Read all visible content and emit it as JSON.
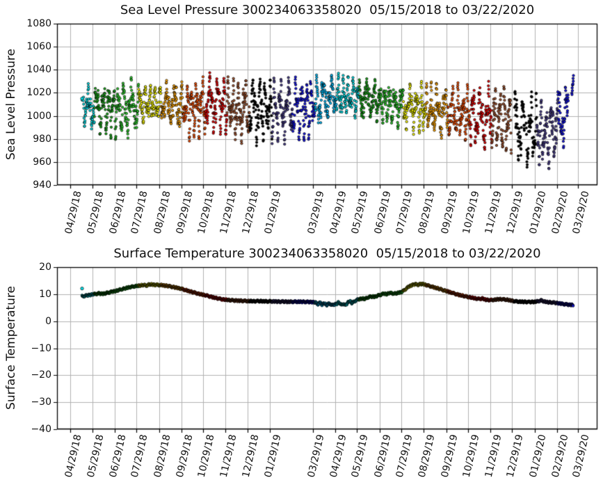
{
  "charts": [
    {
      "title": "Sea Level Pressure 300234063358020  05/15/2018 to 03/22/2020",
      "ylabel": "Sea Level Pressure"
    },
    {
      "title": "Surface Temperature 300234063358020  05/15/2018 to 03/22/2020",
      "ylabel": "Surface Temperature"
    }
  ],
  "chart_data": [
    {
      "type": "scatter",
      "title": "Sea Level Pressure 300234063358020  05/15/2018 to 03/22/2020",
      "xlabel": "",
      "ylabel": "Sea Level Pressure",
      "ylim": [
        940,
        1080
      ],
      "ytick_values": [
        940,
        960,
        980,
        1000,
        1020,
        1040,
        1060,
        1080
      ],
      "ytick_labels": [
        "940",
        "960",
        "980",
        "1000",
        "1020",
        "1040",
        "1060",
        "1080"
      ],
      "x_start_date": "2018-05-15",
      "x_end_date": "2020-03-22",
      "grid": true,
      "marker": "circle",
      "marker_edge_color": "#000000",
      "xticks": [
        {
          "label": "04/29/18",
          "day": -16
        },
        {
          "label": "05/29/18",
          "day": 14
        },
        {
          "label": "06/29/18",
          "day": 45
        },
        {
          "label": "07/29/18",
          "day": 75
        },
        {
          "label": "08/29/18",
          "day": 106
        },
        {
          "label": "09/29/18",
          "day": 137
        },
        {
          "label": "10/29/18",
          "day": 167
        },
        {
          "label": "11/29/18",
          "day": 198
        },
        {
          "label": "12/29/18",
          "day": 228
        },
        {
          "label": "01/29/19",
          "day": 259
        },
        {
          "label": "03/29/19",
          "day": 318
        },
        {
          "label": "04/29/19",
          "day": 349
        },
        {
          "label": "05/29/19",
          "day": 379
        },
        {
          "label": "06/29/19",
          "day": 410
        },
        {
          "label": "07/29/19",
          "day": 440
        },
        {
          "label": "08/29/19",
          "day": 471
        },
        {
          "label": "09/29/19",
          "day": 502
        },
        {
          "label": "10/29/19",
          "day": 532
        },
        {
          "label": "11/29/19",
          "day": 563
        },
        {
          "label": "12/29/19",
          "day": 593
        },
        {
          "label": "01/29/20",
          "day": 624
        },
        {
          "label": "02/29/20",
          "day": 655
        },
        {
          "label": "03/29/20",
          "day": 684
        }
      ],
      "first_point": {
        "day": 0,
        "value": 1015
      },
      "monthly_segments": [
        {
          "month": "2018-05",
          "color": "#00E5EE",
          "start_day": 0,
          "end_day": 17,
          "mean": 1006,
          "min": 988,
          "max": 1028
        },
        {
          "month": "2018-06",
          "color": "#1CAC1C",
          "start_day": 17,
          "end_day": 47,
          "mean": 1008,
          "min": 979,
          "max": 1033
        },
        {
          "month": "2018-07",
          "color": "#2FD42F",
          "start_day": 47,
          "end_day": 78,
          "mean": 1008,
          "min": 978,
          "max": 1035
        },
        {
          "month": "2018-08",
          "color": "#FFFF00",
          "start_day": 78,
          "end_day": 109,
          "mean": 1012,
          "min": 994,
          "max": 1029
        },
        {
          "month": "2018-09",
          "color": "#FFA500",
          "start_day": 109,
          "end_day": 139,
          "mean": 1010,
          "min": 988,
          "max": 1031
        },
        {
          "month": "2018-10",
          "color": "#F84F00",
          "start_day": 139,
          "end_day": 170,
          "mean": 1006,
          "min": 976,
          "max": 1035
        },
        {
          "month": "2018-11",
          "color": "#EE0000",
          "start_day": 170,
          "end_day": 200,
          "mean": 1010,
          "min": 984,
          "max": 1041
        },
        {
          "month": "2018-12",
          "color": "#A0522D",
          "start_day": 200,
          "end_day": 231,
          "mean": 1005,
          "min": 974,
          "max": 1034
        },
        {
          "month": "2019-01",
          "color": "#000000",
          "start_day": 231,
          "end_day": 262,
          "mean": 1006,
          "min": 972,
          "max": 1041
        },
        {
          "month": "2019-02",
          "color": "#483D8B",
          "start_day": 262,
          "end_day": 290,
          "mean": 1004,
          "min": 975,
          "max": 1035
        },
        {
          "month": "2019-03",
          "color": "#1414EB",
          "start_day": 290,
          "end_day": 321,
          "mean": 1004,
          "min": 972,
          "max": 1038
        },
        {
          "month": "2019-04",
          "color": "#00BFFF",
          "start_day": 321,
          "end_day": 351,
          "mean": 1016,
          "min": 994,
          "max": 1038
        },
        {
          "month": "2019-05",
          "color": "#00E5EE",
          "start_day": 351,
          "end_day": 382,
          "mean": 1016,
          "min": 997,
          "max": 1037
        },
        {
          "month": "2019-06",
          "color": "#1CAC1C",
          "start_day": 382,
          "end_day": 412,
          "mean": 1012,
          "min": 994,
          "max": 1034
        },
        {
          "month": "2019-07",
          "color": "#2FD42F",
          "start_day": 412,
          "end_day": 443,
          "mean": 1010,
          "min": 989,
          "max": 1030
        },
        {
          "month": "2019-08",
          "color": "#FFFF00",
          "start_day": 443,
          "end_day": 474,
          "mean": 1008,
          "min": 984,
          "max": 1030
        },
        {
          "month": "2019-09",
          "color": "#FFA500",
          "start_day": 474,
          "end_day": 504,
          "mean": 1005,
          "min": 979,
          "max": 1030
        },
        {
          "month": "2019-10",
          "color": "#F84F00",
          "start_day": 504,
          "end_day": 535,
          "mean": 1002,
          "min": 974,
          "max": 1030
        },
        {
          "month": "2019-11",
          "color": "#EE0000",
          "start_day": 535,
          "end_day": 565,
          "mean": 1000,
          "min": 967,
          "max": 1030
        },
        {
          "month": "2019-12",
          "color": "#A0522D",
          "start_day": 565,
          "end_day": 596,
          "mean": 998,
          "min": 964,
          "max": 1030
        },
        {
          "month": "2020-01",
          "color": "#000000",
          "start_day": 596,
          "end_day": 627,
          "mean": 990,
          "min": 952,
          "max": 1026
        },
        {
          "month": "2020-02",
          "color": "#483D8B",
          "start_day": 627,
          "end_day": 656,
          "mean": 986,
          "min": 948,
          "max": 1018
        },
        {
          "month": "2020-03",
          "color": "#1414EB",
          "start_day": 656,
          "end_day": 677.5,
          "mean": 996,
          "min": 971,
          "max": 1034
        }
      ],
      "gaps": [
        [
          0.2,
          1.6
        ],
        [
          592,
          596
        ],
        [
          610.5,
          612
        ],
        [
          670.5,
          675
        ]
      ],
      "end_cluster": {
        "start_day": 675,
        "end_day": 677.5,
        "min": 1015,
        "max": 1035
      }
    },
    {
      "type": "scatter",
      "title": "Surface Temperature 300234063358020  05/15/2018 to 03/22/2020",
      "xlabel": "",
      "ylabel": "Surface Temperature",
      "ylim": [
        -40,
        20
      ],
      "ytick_values": [
        -40,
        -30,
        -20,
        -10,
        0,
        10,
        20
      ],
      "ytick_labels": [
        "−40",
        "−30",
        "−20",
        "−10",
        "0",
        "10",
        "20"
      ],
      "x_start_date": "2018-05-15",
      "x_end_date": "2020-03-22",
      "grid": true,
      "marker": "circle",
      "marker_edge_color": "#000000",
      "xticks": [
        {
          "label": "04/29/18",
          "day": -16
        },
        {
          "label": "05/29/18",
          "day": 14
        },
        {
          "label": "06/29/18",
          "day": 45
        },
        {
          "label": "07/29/18",
          "day": 75
        },
        {
          "label": "08/29/18",
          "day": 106
        },
        {
          "label": "09/29/18",
          "day": 137
        },
        {
          "label": "10/29/18",
          "day": 167
        },
        {
          "label": "11/29/18",
          "day": 198
        },
        {
          "label": "12/29/18",
          "day": 228
        },
        {
          "label": "01/29/19",
          "day": 259
        },
        {
          "label": "03/29/19",
          "day": 318
        },
        {
          "label": "04/29/19",
          "day": 349
        },
        {
          "label": "05/29/19",
          "day": 379
        },
        {
          "label": "06/29/19",
          "day": 410
        },
        {
          "label": "07/29/19",
          "day": 440
        },
        {
          "label": "08/29/19",
          "day": 471
        },
        {
          "label": "09/29/19",
          "day": 502
        },
        {
          "label": "10/29/19",
          "day": 532
        },
        {
          "label": "11/29/19",
          "day": 563
        },
        {
          "label": "12/29/19",
          "day": 593
        },
        {
          "label": "01/29/20",
          "day": 624
        },
        {
          "label": "02/29/20",
          "day": 655
        },
        {
          "label": "03/29/20",
          "day": 684
        }
      ],
      "first_point": {
        "day": 0,
        "value": 12.1
      },
      "monthly_colors": [
        {
          "month": "2018-05",
          "color": "#00E5EE",
          "start_day": 0,
          "end_day": 17
        },
        {
          "month": "2018-06",
          "color": "#1CAC1C",
          "start_day": 17,
          "end_day": 47
        },
        {
          "month": "2018-07",
          "color": "#2FD42F",
          "start_day": 47,
          "end_day": 78
        },
        {
          "month": "2018-08",
          "color": "#FFFF00",
          "start_day": 78,
          "end_day": 109
        },
        {
          "month": "2018-09",
          "color": "#FFA500",
          "start_day": 109,
          "end_day": 139
        },
        {
          "month": "2018-10",
          "color": "#F84F00",
          "start_day": 139,
          "end_day": 170
        },
        {
          "month": "2018-11",
          "color": "#EE0000",
          "start_day": 170,
          "end_day": 200
        },
        {
          "month": "2018-12",
          "color": "#A0522D",
          "start_day": 200,
          "end_day": 231
        },
        {
          "month": "2019-01",
          "color": "#000000",
          "start_day": 231,
          "end_day": 262
        },
        {
          "month": "2019-02",
          "color": "#483D8B",
          "start_day": 262,
          "end_day": 290
        },
        {
          "month": "2019-03",
          "color": "#1414EB",
          "start_day": 290,
          "end_day": 321
        },
        {
          "month": "2019-04",
          "color": "#00BFFF",
          "start_day": 321,
          "end_day": 351
        },
        {
          "month": "2019-05",
          "color": "#00E5EE",
          "start_day": 351,
          "end_day": 382
        },
        {
          "month": "2019-06",
          "color": "#1CAC1C",
          "start_day": 382,
          "end_day": 412
        },
        {
          "month": "2019-07",
          "color": "#2FD42F",
          "start_day": 412,
          "end_day": 443
        },
        {
          "month": "2019-08",
          "color": "#FFFF00",
          "start_day": 443,
          "end_day": 474
        },
        {
          "month": "2019-09",
          "color": "#FFA500",
          "start_day": 474,
          "end_day": 504
        },
        {
          "month": "2019-10",
          "color": "#F84F00",
          "start_day": 504,
          "end_day": 535
        },
        {
          "month": "2019-11",
          "color": "#EE0000",
          "start_day": 535,
          "end_day": 565
        },
        {
          "month": "2019-12",
          "color": "#A0522D",
          "start_day": 565,
          "end_day": 596
        },
        {
          "month": "2020-01",
          "color": "#000000",
          "start_day": 596,
          "end_day": 627
        },
        {
          "month": "2020-02",
          "color": "#483D8B",
          "start_day": 627,
          "end_day": 656
        },
        {
          "month": "2020-03",
          "color": "#1414EB",
          "start_day": 656,
          "end_day": 677.5
        }
      ],
      "anchors": [
        [
          0,
          9.2
        ],
        [
          6,
          9.5
        ],
        [
          12,
          9.8
        ],
        [
          17,
          10.0
        ],
        [
          23,
          10.3
        ],
        [
          29,
          10.1
        ],
        [
          35,
          10.5
        ],
        [
          41,
          10.9
        ],
        [
          47,
          11.2
        ],
        [
          53,
          11.7
        ],
        [
          59,
          12.1
        ],
        [
          66,
          12.6
        ],
        [
          72,
          12.9
        ],
        [
          78,
          13.1
        ],
        [
          84,
          13.4
        ],
        [
          89,
          13.2
        ],
        [
          93,
          13.6
        ],
        [
          99,
          13.5
        ],
        [
          105,
          13.4
        ],
        [
          111,
          13.3
        ],
        [
          117,
          13.1
        ],
        [
          123,
          12.8
        ],
        [
          130,
          12.4
        ],
        [
          137,
          12.0
        ],
        [
          143,
          11.5
        ],
        [
          149,
          11.0
        ],
        [
          156,
          10.5
        ],
        [
          163,
          10.0
        ],
        [
          170,
          9.6
        ],
        [
          177,
          9.1
        ],
        [
          184,
          8.6
        ],
        [
          191,
          8.2
        ],
        [
          199,
          7.9
        ],
        [
          207,
          7.7
        ],
        [
          215,
          7.6
        ],
        [
          223,
          7.5
        ],
        [
          231,
          7.4
        ],
        [
          243,
          7.4
        ],
        [
          255,
          7.35
        ],
        [
          262,
          7.3
        ],
        [
          274,
          7.25
        ],
        [
          286,
          7.2
        ],
        [
          298,
          7.2
        ],
        [
          310,
          7.15
        ],
        [
          318,
          7.1
        ],
        [
          322,
          6.9
        ],
        [
          325,
          6.3
        ],
        [
          328,
          6.9
        ],
        [
          331,
          6.1
        ],
        [
          334,
          6.7
        ],
        [
          337,
          5.9
        ],
        [
          341,
          6.6
        ],
        [
          345,
          5.9
        ],
        [
          348,
          6.2
        ],
        [
          351,
          6.4
        ],
        [
          354,
          7.1
        ],
        [
          357,
          6.0
        ],
        [
          360,
          6.5
        ],
        [
          363,
          5.8
        ],
        [
          366,
          6.8
        ],
        [
          369,
          7.5
        ],
        [
          372,
          6.7
        ],
        [
          375,
          7.2
        ],
        [
          378,
          7.8
        ],
        [
          382,
          8.1
        ],
        [
          386,
          8.4
        ],
        [
          390,
          8.2
        ],
        [
          394,
          8.8
        ],
        [
          398,
          9.1
        ],
        [
          403,
          9.0
        ],
        [
          408,
          9.5
        ],
        [
          412,
          9.8
        ],
        [
          416,
          10.2
        ],
        [
          420,
          10.0
        ],
        [
          424,
          10.5
        ],
        [
          428,
          10.3
        ],
        [
          432,
          10.2
        ],
        [
          436,
          10.5
        ],
        [
          440,
          10.8
        ],
        [
          443,
          11.2
        ],
        [
          447,
          12.1
        ],
        [
          451,
          12.9
        ],
        [
          455,
          13.4
        ],
        [
          459,
          13.7
        ],
        [
          463,
          13.5
        ],
        [
          467,
          13.8
        ],
        [
          471,
          13.7
        ],
        [
          474,
          13.4
        ],
        [
          478,
          13.1
        ],
        [
          482,
          12.8
        ],
        [
          487,
          12.4
        ],
        [
          492,
          12.0
        ],
        [
          497,
          11.6
        ],
        [
          504,
          11.0
        ],
        [
          510,
          10.5
        ],
        [
          516,
          10.0
        ],
        [
          522,
          9.6
        ],
        [
          528,
          9.2
        ],
        [
          535,
          8.8
        ],
        [
          541,
          8.5
        ],
        [
          547,
          8.2
        ],
        [
          552,
          8.4
        ],
        [
          557,
          7.9
        ],
        [
          565,
          7.8
        ],
        [
          571,
          8.0
        ],
        [
          577,
          8.2
        ],
        [
          583,
          8.0
        ],
        [
          589,
          7.8
        ],
        [
          596,
          7.4
        ],
        [
          603,
          7.2
        ],
        [
          610,
          7.2
        ],
        [
          617,
          7.1
        ],
        [
          624,
          7.2
        ],
        [
          629,
          7.4
        ],
        [
          633,
          7.7
        ],
        [
          637,
          7.3
        ],
        [
          643,
          7.0
        ],
        [
          650,
          6.9
        ],
        [
          656,
          6.7
        ],
        [
          662,
          6.4
        ],
        [
          668,
          6.2
        ],
        [
          672,
          6.1
        ],
        [
          677,
          5.9
        ]
      ]
    }
  ],
  "style": {
    "grid_color": "#b0b0b0",
    "spine_color": "#000000",
    "background": "#ffffff"
  }
}
